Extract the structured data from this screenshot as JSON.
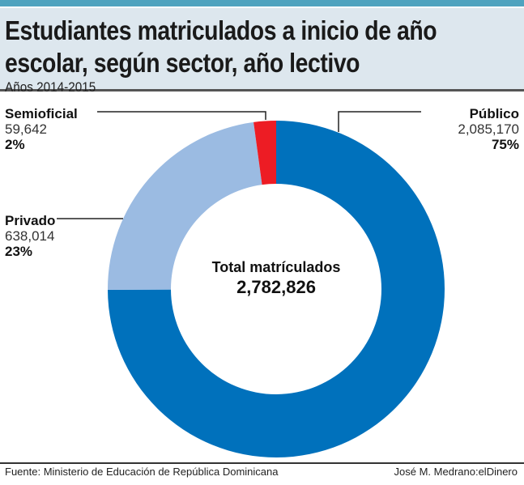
{
  "title_line1": "Estudiantes matriculados a inicio de año",
  "title_line2": "escolar, según sector, año lectivo",
  "subtitle": "Años 2014-2015",
  "source": "Fuente: Ministerio de Educación de República Dominicana",
  "credit": "José M. Medrano:elDinero",
  "chart_data": {
    "type": "pie",
    "subtype": "donut",
    "title": "Estudiantes matriculados a inicio de año escolar, según sector, año lectivo",
    "center_label": "Total matrículados",
    "total": "2,782,826",
    "slices": [
      {
        "name": "Público",
        "value": 2085170,
        "value_label": "2,085,170",
        "percent_label": "75%",
        "color": "#0071bc"
      },
      {
        "name": "Privado",
        "value": 638014,
        "value_label": "638,014",
        "percent_label": "23%",
        "color": "#9bbbe2"
      },
      {
        "name": "Semioficial",
        "value": 59642,
        "value_label": "59,642",
        "percent_label": "2%",
        "color": "#ed1c24"
      }
    ]
  }
}
